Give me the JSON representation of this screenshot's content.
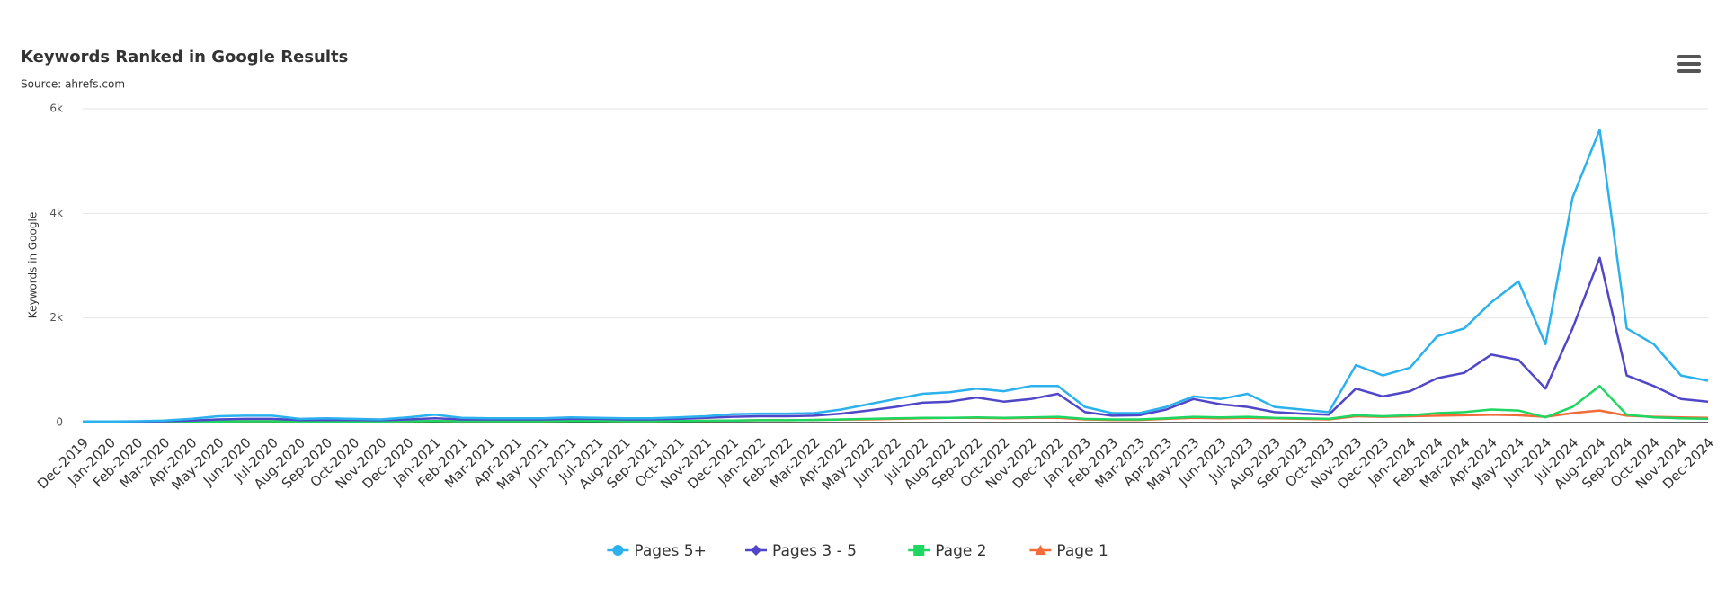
{
  "chart_data": {
    "type": "line",
    "title": "Keywords Ranked in Google Results",
    "subtitle": "Source: ahrefs.com",
    "y_label": "Keywords in Google",
    "categories": [
      "Dec-2019",
      "Jan-2020",
      "Feb-2020",
      "Mar-2020",
      "Apr-2020",
      "May-2020",
      "Jun-2020",
      "Jul-2020",
      "Aug-2020",
      "Sep-2020",
      "Oct-2020",
      "Nov-2020",
      "Dec-2020",
      "Jan-2021",
      "Feb-2021",
      "Mar-2021",
      "Apr-2021",
      "May-2021",
      "Jun-2021",
      "Jul-2021",
      "Aug-2021",
      "Sep-2021",
      "Oct-2021",
      "Nov-2021",
      "Dec-2021",
      "Jan-2022",
      "Feb-2022",
      "Mar-2022",
      "Apr-2022",
      "May-2022",
      "Jun-2022",
      "Jul-2022",
      "Aug-2022",
      "Sep-2022",
      "Oct-2022",
      "Nov-2022",
      "Dec-2022",
      "Jan-2023",
      "Feb-2023",
      "Mar-2023",
      "Apr-2023",
      "May-2023",
      "Jun-2023",
      "Jul-2023",
      "Aug-2023",
      "Sep-2023",
      "Oct-2023",
      "Nov-2023",
      "Dec-2023",
      "Jan-2024",
      "Feb-2024",
      "Mar-2024",
      "Apr-2024",
      "May-2024",
      "Jun-2024",
      "Jul-2024",
      "Aug-2024",
      "Sep-2024",
      "Oct-2024",
      "Nov-2024",
      "Dec-2024"
    ],
    "series": [
      {
        "name": "Pages 5+",
        "color": "#2cb1ef",
        "marker": "circle",
        "values": [
          20,
          20,
          25,
          40,
          70,
          120,
          130,
          130,
          70,
          80,
          70,
          60,
          100,
          150,
          90,
          80,
          80,
          80,
          100,
          90,
          80,
          80,
          100,
          120,
          160,
          170,
          170,
          180,
          250,
          350,
          450,
          550,
          580,
          650,
          600,
          700,
          700,
          300,
          180,
          180,
          300,
          500,
          450,
          550,
          300,
          250,
          200,
          1100,
          900,
          1050,
          1650,
          1800,
          2300,
          2700,
          1500,
          4300,
          5600,
          1800,
          1500,
          900,
          800
        ]
      },
      {
        "name": "Pages 3 - 5",
        "color": "#5046c8",
        "marker": "diamond",
        "values": [
          10,
          10,
          15,
          25,
          40,
          60,
          70,
          70,
          50,
          50,
          50,
          45,
          60,
          80,
          60,
          60,
          60,
          60,
          70,
          70,
          60,
          60,
          70,
          90,
          110,
          120,
          120,
          130,
          170,
          230,
          300,
          380,
          400,
          480,
          400,
          450,
          550,
          200,
          130,
          140,
          250,
          450,
          350,
          300,
          200,
          170,
          150,
          650,
          500,
          600,
          850,
          950,
          1300,
          1200,
          650,
          1800,
          3150,
          900,
          700,
          450,
          400
        ]
      },
      {
        "name": "Page 2",
        "color": "#1ed760",
        "marker": "square",
        "values": [
          5,
          5,
          5,
          10,
          15,
          20,
          25,
          25,
          20,
          20,
          20,
          20,
          25,
          30,
          25,
          25,
          25,
          25,
          30,
          30,
          25,
          25,
          30,
          35,
          40,
          45,
          45,
          50,
          60,
          70,
          80,
          90,
          90,
          100,
          90,
          100,
          110,
          70,
          60,
          60,
          80,
          110,
          100,
          110,
          90,
          80,
          70,
          140,
          120,
          140,
          180,
          200,
          250,
          230,
          100,
          300,
          700,
          150,
          100,
          80,
          70
        ]
      },
      {
        "name": "Page 1",
        "color": "#f26b38",
        "marker": "triangle",
        "values": [
          5,
          5,
          5,
          10,
          15,
          20,
          25,
          25,
          20,
          20,
          20,
          20,
          25,
          30,
          25,
          25,
          25,
          25,
          30,
          30,
          25,
          25,
          30,
          35,
          40,
          45,
          45,
          50,
          55,
          60,
          70,
          80,
          90,
          90,
          80,
          90,
          90,
          60,
          50,
          50,
          70,
          90,
          80,
          90,
          80,
          70,
          60,
          120,
          110,
          120,
          130,
          140,
          150,
          140,
          110,
          180,
          230,
          130,
          110,
          100,
          90
        ]
      }
    ],
    "ylim": [
      0,
      6000
    ],
    "yticks": [
      {
        "value": 0,
        "label": "0"
      },
      {
        "value": 2000,
        "label": "2k"
      },
      {
        "value": 4000,
        "label": "4k"
      },
      {
        "value": 6000,
        "label": "6k"
      }
    ],
    "grid": true,
    "legend": "bottom"
  }
}
